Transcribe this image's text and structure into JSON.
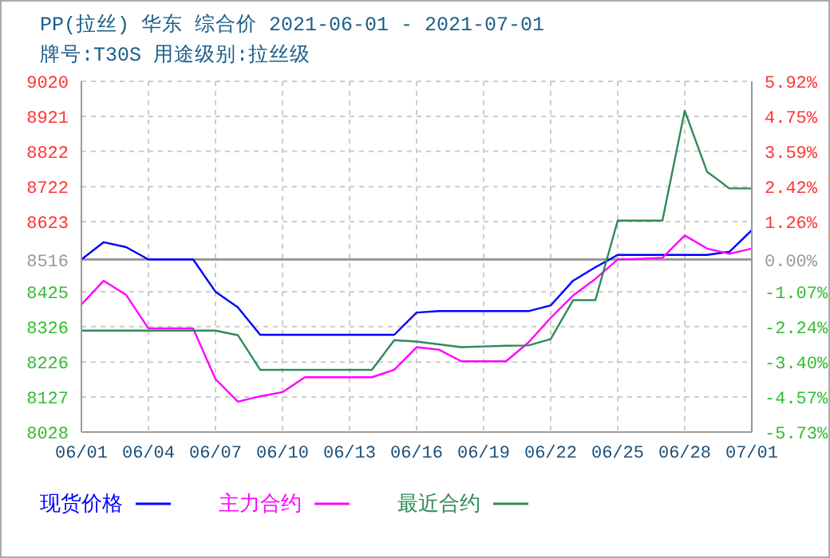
{
  "chart_data": {
    "type": "line",
    "title": "PP(拉丝) 华东 综合价 2021-06-01 - 2021-07-01",
    "subtitle": "牌号:T30S 用途级别:拉丝级",
    "categories": [
      "06/01",
      null,
      null,
      "06/04",
      null,
      null,
      "06/07",
      null,
      null,
      "06/10",
      null,
      null,
      "06/13",
      null,
      null,
      "06/16",
      null,
      null,
      "06/19",
      null,
      null,
      "06/22",
      null,
      null,
      "06/25",
      null,
      null,
      "06/28",
      null,
      null,
      "07/01"
    ],
    "series": [
      {
        "name": "现货价格",
        "color": "#0000ff",
        "values": [
          8516,
          8565,
          8551,
          8516,
          8516,
          8516,
          8425,
          8381,
          8303,
          8303,
          8303,
          8303,
          8303,
          8303,
          8303,
          8366,
          8370,
          8370,
          8370,
          8370,
          8370,
          8386,
          8456,
          8494,
          8529,
          8529,
          8529,
          8529,
          8529,
          8538,
          8599
        ]
      },
      {
        "name": "主力合约",
        "color": "#ff00ff",
        "values": [
          8389,
          8456,
          8416,
          8321,
          8321,
          8321,
          8178,
          8114,
          8129,
          8141,
          8183,
          8183,
          8183,
          8183,
          8204,
          8268,
          8261,
          8228,
          8228,
          8228,
          8281,
          8351,
          8414,
          8461,
          8516,
          8518,
          8521,
          8584,
          8547,
          8532,
          8547
        ]
      },
      {
        "name": "最近合约",
        "color": "#2e8b57",
        "values": [
          8315,
          8315,
          8315,
          8315,
          8315,
          8315,
          8315,
          8302,
          8204,
          8204,
          8204,
          8204,
          8204,
          8204,
          8288,
          8284,
          8276,
          8268,
          8270,
          8272,
          8273,
          8291,
          8401,
          8401,
          8626,
          8626,
          8626,
          8937,
          8764,
          8717,
          8717
        ]
      }
    ],
    "ylim": [
      8028,
      9020
    ],
    "yticks": [
      8028,
      8127,
      8226,
      8326,
      8425,
      8516,
      8623,
      8722,
      8822,
      8921,
      9020
    ],
    "y2lim": [
      -5.73,
      5.92
    ],
    "y2ticks": [
      {
        "value": -5.73,
        "label": "-5.73%"
      },
      {
        "value": -4.57,
        "label": "-4.57%"
      },
      {
        "value": -3.4,
        "label": "-3.40%"
      },
      {
        "value": -2.24,
        "label": "-2.24%"
      },
      {
        "value": -1.07,
        "label": "-1.07%"
      },
      {
        "value": 0,
        "label": "0.00%"
      },
      {
        "value": 1.26,
        "label": "1.26%"
      },
      {
        "value": 2.42,
        "label": "2.42%"
      },
      {
        "value": 3.59,
        "label": "3.59%"
      },
      {
        "value": 4.75,
        "label": "4.75%"
      },
      {
        "value": 5.92,
        "label": "5.92%"
      }
    ],
    "ref_lines": [
      {
        "axis": "y",
        "value": 8516,
        "color": "#999999",
        "line_style": "solid"
      }
    ],
    "grid": true,
    "legend": "bottom",
    "marker": "none",
    "line_style": "solid"
  }
}
